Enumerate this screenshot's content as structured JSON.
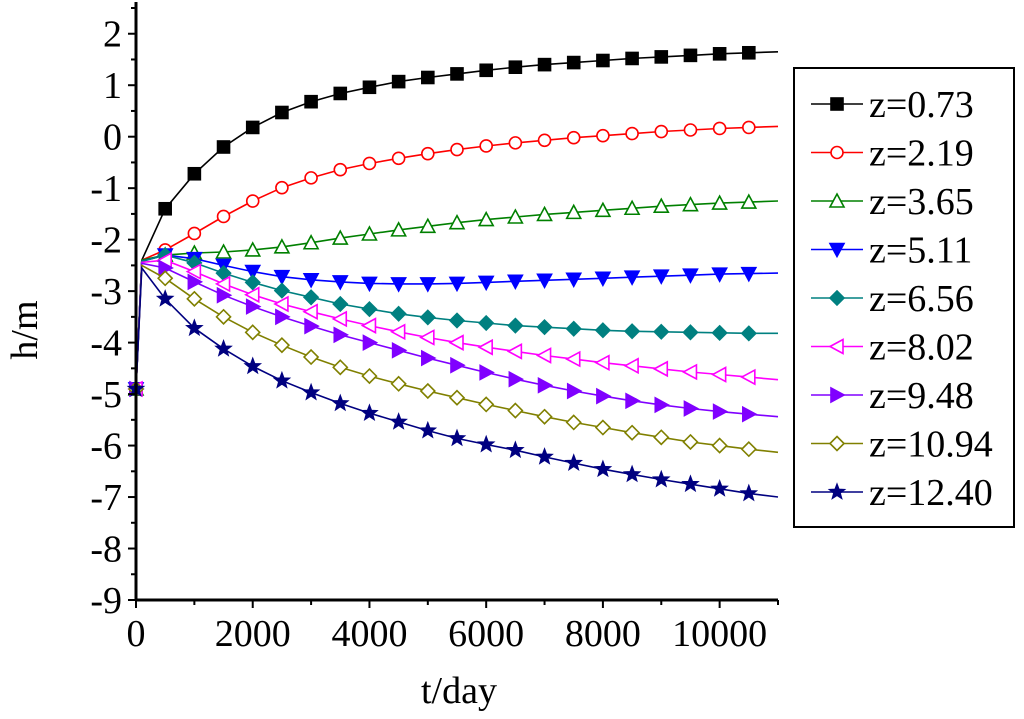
{
  "chart_data": {
    "type": "line",
    "title": "",
    "xlabel": "t/day",
    "ylabel": "h/m",
    "xlim": [
      0,
      11000
    ],
    "ylim": [
      -9,
      2.5
    ],
    "xticks": [
      0,
      2000,
      4000,
      6000,
      8000,
      10000
    ],
    "xtick_labels": [
      "0",
      "2000",
      "4000",
      "6000",
      "8000",
      "10000"
    ],
    "yticks": [
      2,
      1,
      0,
      -1,
      -2,
      -3,
      -4,
      -5,
      -6,
      -7,
      -8,
      -9
    ],
    "ytick_labels": [
      "2",
      "1",
      "0",
      "-1",
      "-2",
      "-3",
      "-4",
      "-5",
      "-6",
      "-7",
      "-8",
      "-9"
    ],
    "grid": false,
    "legend_position": "right",
    "t_start": 0,
    "t_end": 11000,
    "initial_head": -4.9,
    "marker_x": [
      0,
      500,
      1000,
      1500,
      2000,
      2500,
      3000,
      3500,
      4000,
      4500,
      5000,
      5500,
      6000,
      6500,
      7000,
      7500,
      8000,
      8500,
      9000,
      9500,
      10000,
      10500
    ],
    "series": [
      {
        "name": "z=0.73",
        "color": "#000000",
        "marker": "square",
        "filled": true,
        "x": [
          0,
          100,
          500,
          1000,
          1500,
          2000,
          2500,
          3000,
          3500,
          4000,
          4500,
          5000,
          5500,
          6000,
          6500,
          7000,
          7500,
          8000,
          8500,
          9000,
          9500,
          10000,
          10500,
          11000
        ],
        "y": [
          -4.9,
          -2.4,
          -1.4,
          -0.72,
          -0.2,
          0.18,
          0.47,
          0.68,
          0.84,
          0.96,
          1.07,
          1.15,
          1.22,
          1.29,
          1.35,
          1.4,
          1.44,
          1.48,
          1.52,
          1.55,
          1.58,
          1.61,
          1.63,
          1.65
        ]
      },
      {
        "name": "z=2.19",
        "color": "#ff0000",
        "marker": "circle",
        "filled": false,
        "x": [
          0,
          100,
          500,
          1000,
          1500,
          2000,
          2500,
          3000,
          3500,
          4000,
          4500,
          5000,
          5500,
          6000,
          6500,
          7000,
          7500,
          8000,
          8500,
          9000,
          9500,
          10000,
          10500,
          11000
        ],
        "y": [
          -4.9,
          -2.4,
          -2.2,
          -1.88,
          -1.55,
          -1.25,
          -0.99,
          -0.8,
          -0.64,
          -0.52,
          -0.42,
          -0.33,
          -0.25,
          -0.18,
          -0.12,
          -0.07,
          -0.02,
          0.02,
          0.06,
          0.1,
          0.13,
          0.16,
          0.18,
          0.2
        ]
      },
      {
        "name": "z=3.65",
        "color": "#008000",
        "marker": "triangle-up",
        "filled": false,
        "x": [
          0,
          100,
          500,
          1000,
          1500,
          2000,
          2500,
          3000,
          3500,
          4000,
          4500,
          5000,
          5500,
          6000,
          6500,
          7000,
          7500,
          8000,
          8500,
          9000,
          9500,
          10000,
          10500,
          11000
        ],
        "y": [
          -4.9,
          -2.4,
          -2.3,
          -2.26,
          -2.24,
          -2.2,
          -2.14,
          -2.06,
          -1.97,
          -1.89,
          -1.81,
          -1.74,
          -1.67,
          -1.61,
          -1.56,
          -1.51,
          -1.47,
          -1.43,
          -1.39,
          -1.35,
          -1.32,
          -1.29,
          -1.27,
          -1.25
        ]
      },
      {
        "name": "z=5.11",
        "color": "#0000ff",
        "marker": "triangle-down",
        "filled": true,
        "x": [
          0,
          100,
          500,
          1000,
          1500,
          2000,
          2500,
          3000,
          3500,
          4000,
          4500,
          5000,
          5500,
          6000,
          6500,
          7000,
          7500,
          8000,
          8500,
          9000,
          9500,
          10000,
          10500,
          11000
        ],
        "y": [
          -4.9,
          -2.42,
          -2.3,
          -2.37,
          -2.5,
          -2.62,
          -2.72,
          -2.78,
          -2.82,
          -2.85,
          -2.86,
          -2.86,
          -2.85,
          -2.83,
          -2.81,
          -2.79,
          -2.77,
          -2.75,
          -2.73,
          -2.71,
          -2.69,
          -2.67,
          -2.66,
          -2.65
        ]
      },
      {
        "name": "z=6.56",
        "color": "#008080",
        "marker": "diamond",
        "filled": true,
        "x": [
          0,
          100,
          500,
          1000,
          1500,
          2000,
          2500,
          3000,
          3500,
          4000,
          4500,
          5000,
          5500,
          6000,
          6500,
          7000,
          7500,
          8000,
          8500,
          9000,
          9500,
          10000,
          10500,
          11000
        ],
        "y": [
          -4.9,
          -2.42,
          -2.3,
          -2.45,
          -2.65,
          -2.83,
          -2.99,
          -3.12,
          -3.25,
          -3.35,
          -3.44,
          -3.51,
          -3.57,
          -3.62,
          -3.67,
          -3.7,
          -3.73,
          -3.76,
          -3.78,
          -3.79,
          -3.8,
          -3.81,
          -3.82,
          -3.82
        ]
      },
      {
        "name": "z=8.02",
        "color": "#ff00ff",
        "marker": "triangle-left",
        "filled": false,
        "x": [
          0,
          100,
          500,
          1000,
          1500,
          2000,
          2500,
          3000,
          3500,
          4000,
          4500,
          5000,
          5500,
          6000,
          6500,
          7000,
          7500,
          8000,
          8500,
          9000,
          9500,
          10000,
          10500,
          11000
        ],
        "y": [
          -4.9,
          -2.44,
          -2.4,
          -2.62,
          -2.86,
          -3.07,
          -3.25,
          -3.4,
          -3.54,
          -3.67,
          -3.79,
          -3.9,
          -4.0,
          -4.09,
          -4.17,
          -4.25,
          -4.32,
          -4.39,
          -4.45,
          -4.51,
          -4.57,
          -4.62,
          -4.67,
          -4.72
        ]
      },
      {
        "name": "z=9.48",
        "color": "#8000ff",
        "marker": "triangle-right",
        "filled": true,
        "x": [
          0,
          100,
          500,
          1000,
          1500,
          2000,
          2500,
          3000,
          3500,
          4000,
          4500,
          5000,
          5500,
          6000,
          6500,
          7000,
          7500,
          8000,
          8500,
          9000,
          9500,
          10000,
          10500,
          11000
        ],
        "y": [
          -4.9,
          -2.46,
          -2.55,
          -2.82,
          -3.08,
          -3.3,
          -3.5,
          -3.68,
          -3.85,
          -4.0,
          -4.15,
          -4.3,
          -4.44,
          -4.58,
          -4.71,
          -4.83,
          -4.94,
          -5.04,
          -5.13,
          -5.21,
          -5.28,
          -5.34,
          -5.39,
          -5.44
        ]
      },
      {
        "name": "z=10.94",
        "color": "#808000",
        "marker": "diamond",
        "filled": false,
        "x": [
          0,
          100,
          500,
          1000,
          1500,
          2000,
          2500,
          3000,
          3500,
          4000,
          4500,
          5000,
          5500,
          6000,
          6500,
          7000,
          7500,
          8000,
          8500,
          9000,
          9500,
          10000,
          10500,
          11000
        ],
        "y": [
          -4.9,
          -2.5,
          -2.75,
          -3.15,
          -3.5,
          -3.8,
          -4.05,
          -4.28,
          -4.48,
          -4.65,
          -4.8,
          -4.94,
          -5.07,
          -5.2,
          -5.32,
          -5.44,
          -5.55,
          -5.65,
          -5.75,
          -5.84,
          -5.93,
          -6.0,
          -6.07,
          -6.13
        ]
      },
      {
        "name": "z=12.40",
        "color": "#000080",
        "marker": "star",
        "filled": true,
        "x": [
          0,
          100,
          500,
          1000,
          1500,
          2000,
          2500,
          3000,
          3500,
          4000,
          4500,
          5000,
          5500,
          6000,
          6500,
          7000,
          7500,
          8000,
          8500,
          9000,
          9500,
          10000,
          10500,
          11000
        ],
        "y": [
          -4.9,
          -2.55,
          -3.15,
          -3.72,
          -4.12,
          -4.46,
          -4.74,
          -4.97,
          -5.18,
          -5.37,
          -5.54,
          -5.71,
          -5.86,
          -5.98,
          -6.09,
          -6.22,
          -6.34,
          -6.46,
          -6.56,
          -6.66,
          -6.75,
          -6.84,
          -6.93,
          -7.0
        ]
      }
    ]
  }
}
